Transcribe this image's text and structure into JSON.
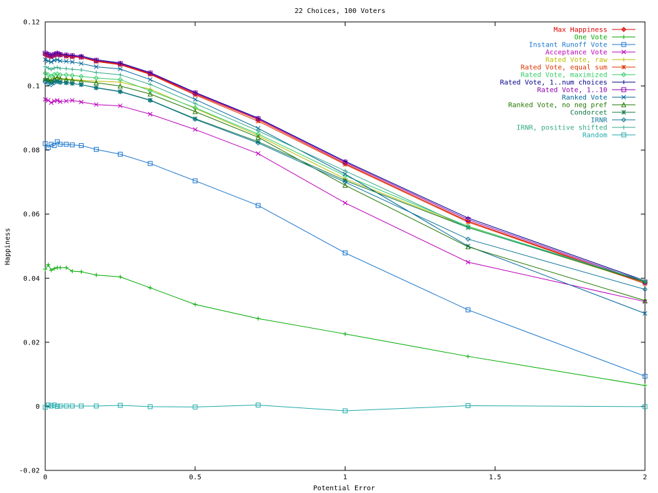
{
  "chart_data": {
    "type": "line",
    "title": "22 Choices, 100 Voters",
    "xlabel": "Potential Error",
    "ylabel": "Happiness",
    "xlim": [
      0,
      2
    ],
    "ylim": [
      -0.02,
      0.12
    ],
    "grid": false,
    "legend_position": "top-right",
    "x_ticks": [
      "0",
      "0.5",
      "1",
      "1.5",
      "2"
    ],
    "x_tick_values": [
      0,
      0.5,
      1,
      1.5,
      2
    ],
    "y_ticks": [
      "-0.02",
      "0",
      "0.02",
      "0.04",
      "0.06",
      "0.08",
      "0.1",
      "0.12"
    ],
    "y_tick_values": [
      -0.02,
      0,
      0.02,
      0.04,
      0.06,
      0.08,
      0.1,
      0.12
    ],
    "x": [
      0,
      0.01,
      0.02,
      0.03,
      0.04,
      0.05,
      0.07,
      0.09,
      0.12,
      0.17,
      0.25,
      0.35,
      0.5,
      0.71,
      1.0,
      1.41,
      2.0
    ],
    "series": [
      {
        "name": "Max Happiness",
        "color": "#dd0000",
        "marker": "plus-diamond",
        "values": [
          0.1098,
          0.1095,
          0.1092,
          0.1096,
          0.1099,
          0.1097,
          0.1094,
          0.1092,
          0.109,
          0.1078,
          0.1068,
          0.1038,
          0.0975,
          0.0895,
          0.0758,
          0.0578,
          0.0385
        ]
      },
      {
        "name": "One Vote",
        "color": "#00aa00",
        "marker": "plus",
        "values": [
          0.0428,
          0.0442,
          0.0425,
          0.043,
          0.0433,
          0.0433,
          0.0433,
          0.0422,
          0.042,
          0.041,
          0.0404,
          0.037,
          0.0318,
          0.0274,
          0.0226,
          0.0156,
          0.0065
        ]
      },
      {
        "name": "Instant Runoff Vote",
        "color": "#1a75cc",
        "marker": "square",
        "values": [
          0.082,
          0.0808,
          0.0818,
          0.0814,
          0.0826,
          0.0818,
          0.0818,
          0.0816,
          0.0814,
          0.0802,
          0.0787,
          0.0758,
          0.0704,
          0.0627,
          0.0479,
          0.0301,
          0.0094
        ]
      },
      {
        "name": "Acceptance Vote",
        "color": "#bb00bb",
        "marker": "x",
        "values": [
          0.0958,
          0.0955,
          0.0948,
          0.0953,
          0.0955,
          0.0951,
          0.0953,
          0.0955,
          0.095,
          0.0942,
          0.0938,
          0.0912,
          0.0864,
          0.0789,
          0.0635,
          0.045,
          0.0327
        ]
      },
      {
        "name": "Rated Vote, raw",
        "color": "#bbbb00",
        "marker": "plus",
        "values": [
          0.102,
          0.1018,
          0.1016,
          0.1024,
          0.1026,
          0.1023,
          0.1022,
          0.102,
          0.1018,
          0.1015,
          0.1012,
          0.099,
          0.093,
          0.0845,
          0.071,
          0.056,
          0.0385
        ]
      },
      {
        "name": "Rated Vote, equal sum",
        "color": "#dd3300",
        "marker": "star",
        "values": [
          0.11,
          0.1094,
          0.109,
          0.1095,
          0.1098,
          0.1096,
          0.1092,
          0.109,
          0.1089,
          0.1076,
          0.1066,
          0.1036,
          0.0972,
          0.089,
          0.0755,
          0.0575,
          0.0383
        ]
      },
      {
        "name": "Rated Vote, maximized",
        "color": "#33cc66",
        "marker": "diamond",
        "values": [
          0.104,
          0.1035,
          0.103,
          0.1036,
          0.1038,
          0.1035,
          0.1035,
          0.1033,
          0.103,
          0.1025,
          0.102,
          0.0985,
          0.0932,
          0.085,
          0.072,
          0.0562,
          0.039
        ]
      },
      {
        "name": "Rated Vote, 1..num choices",
        "color": "#000088",
        "marker": "plus",
        "values": [
          0.1104,
          0.1101,
          0.1096,
          0.1101,
          0.1104,
          0.11,
          0.1098,
          0.1096,
          0.1094,
          0.1082,
          0.1072,
          0.1042,
          0.098,
          0.09,
          0.0765,
          0.0588,
          0.0392
        ]
      },
      {
        "name": "Rated Vote, 1..10",
        "color": "#8800aa",
        "marker": "square",
        "values": [
          0.1102,
          0.1098,
          0.1094,
          0.1098,
          0.1101,
          0.1098,
          0.1096,
          0.1094,
          0.1091,
          0.108,
          0.107,
          0.104,
          0.0978,
          0.0898,
          0.0762,
          0.0583,
          0.0388
        ]
      },
      {
        "name": "Ranked Vote",
        "color": "#006699",
        "marker": "x",
        "values": [
          0.1082,
          0.1078,
          0.1075,
          0.108,
          0.1082,
          0.1078,
          0.1077,
          0.1075,
          0.107,
          0.106,
          0.1053,
          0.102,
          0.0958,
          0.0868,
          0.0725,
          0.05,
          0.029
        ]
      },
      {
        "name": "Ranked Vote, no neg pref",
        "color": "#227700",
        "marker": "triangle",
        "values": [
          0.1022,
          0.102,
          0.1016,
          0.1022,
          0.1026,
          0.1022,
          0.102,
          0.1018,
          0.1015,
          0.101,
          0.1,
          0.0975,
          0.092,
          0.084,
          0.069,
          0.0498,
          0.033
        ]
      },
      {
        "name": "Condorcet",
        "color": "#117744",
        "marker": "star",
        "values": [
          0.1018,
          0.1014,
          0.101,
          0.1014,
          0.1016,
          0.1012,
          0.101,
          0.1008,
          0.1004,
          0.0995,
          0.0983,
          0.0956,
          0.0898,
          0.0826,
          0.0705,
          0.0558,
          0.0388
        ]
      },
      {
        "name": "IRNR",
        "color": "#117799",
        "marker": "diamond",
        "values": [
          0.1012,
          0.1008,
          0.1004,
          0.101,
          0.1014,
          0.1011,
          0.101,
          0.1008,
          0.1004,
          0.0994,
          0.0982,
          0.0955,
          0.0896,
          0.0822,
          0.07,
          0.0522,
          0.0365
        ]
      },
      {
        "name": "IRNR, positive shifted",
        "color": "#33aa88",
        "marker": "plus",
        "values": [
          0.106,
          0.1056,
          0.1052,
          0.1056,
          0.1058,
          0.1055,
          0.1054,
          0.1052,
          0.105,
          0.1042,
          0.1035,
          0.1005,
          0.0945,
          0.086,
          0.0735,
          0.0558,
          0.0392
        ]
      },
      {
        "name": "Random",
        "color": "#22aaaa",
        "marker": "square",
        "values": [
          -0.0003,
          0.0004,
          0.0001,
          0.0004,
          0.0,
          0.0001,
          0.0001,
          0.0001,
          0.0001,
          0.0001,
          0.0003,
          -0.0001,
          -0.0002,
          0.0004,
          -0.0014,
          0.0002,
          -0.0001
        ]
      }
    ]
  }
}
